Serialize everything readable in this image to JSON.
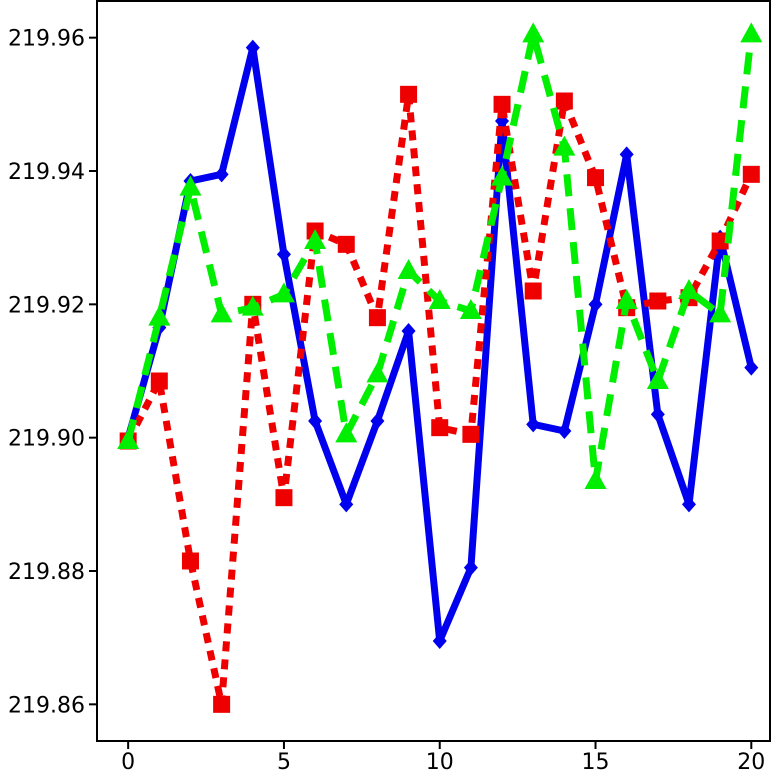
{
  "chart_data": {
    "type": "line",
    "title": "",
    "xlabel": "",
    "ylabel": "",
    "xlim": [
      -1,
      20.6
    ],
    "ylim": [
      219.8545,
      219.9655
    ],
    "grid": false,
    "legend": "none",
    "x": [
      0,
      1,
      2,
      3,
      4,
      5,
      6,
      7,
      8,
      9,
      10,
      11,
      12,
      13,
      14,
      15,
      16,
      17,
      18,
      19,
      20
    ],
    "x_ticks": [
      0,
      5,
      10,
      15,
      20
    ],
    "x_tick_labels": [
      "0",
      "5",
      "10",
      "15",
      "20"
    ],
    "y_ticks": [
      219.86,
      219.88,
      219.9,
      219.92,
      219.94,
      219.96
    ],
    "y_tick_labels": [
      "219.86",
      "219.88",
      "219.90",
      "219.92",
      "219.94",
      "219.96"
    ],
    "series": [
      {
        "color": "#0000ee",
        "line_style": "solid",
        "marker": "diamond",
        "values": [
          219.9,
          219.9165,
          219.9385,
          219.9395,
          219.9585,
          219.9275,
          219.9025,
          219.89,
          219.9025,
          219.916,
          219.8695,
          219.8805,
          219.9475,
          219.902,
          219.901,
          219.92,
          219.9425,
          219.9035,
          219.89,
          219.93,
          219.9105
        ]
      },
      {
        "color": "#ee0000",
        "line_style": "dotted",
        "marker": "square",
        "values": [
          219.8995,
          219.9085,
          219.8815,
          219.86,
          219.92,
          219.891,
          219.931,
          219.929,
          219.918,
          219.9515,
          219.9015,
          219.9005,
          219.95,
          219.922,
          219.9505,
          219.939,
          219.9195,
          219.9205,
          219.921,
          219.9295,
          219.9395
        ]
      },
      {
        "color": "#00ee00",
        "line_style": "dashed",
        "marker": "triangle",
        "values": [
          219.8995,
          219.918,
          219.9375,
          219.9185,
          219.9195,
          219.9215,
          219.9295,
          219.9005,
          219.9095,
          219.925,
          219.9205,
          219.919,
          219.939,
          219.9605,
          219.9435,
          219.8935,
          219.9205,
          219.9085,
          219.922,
          219.9185,
          219.9605
        ]
      }
    ]
  }
}
